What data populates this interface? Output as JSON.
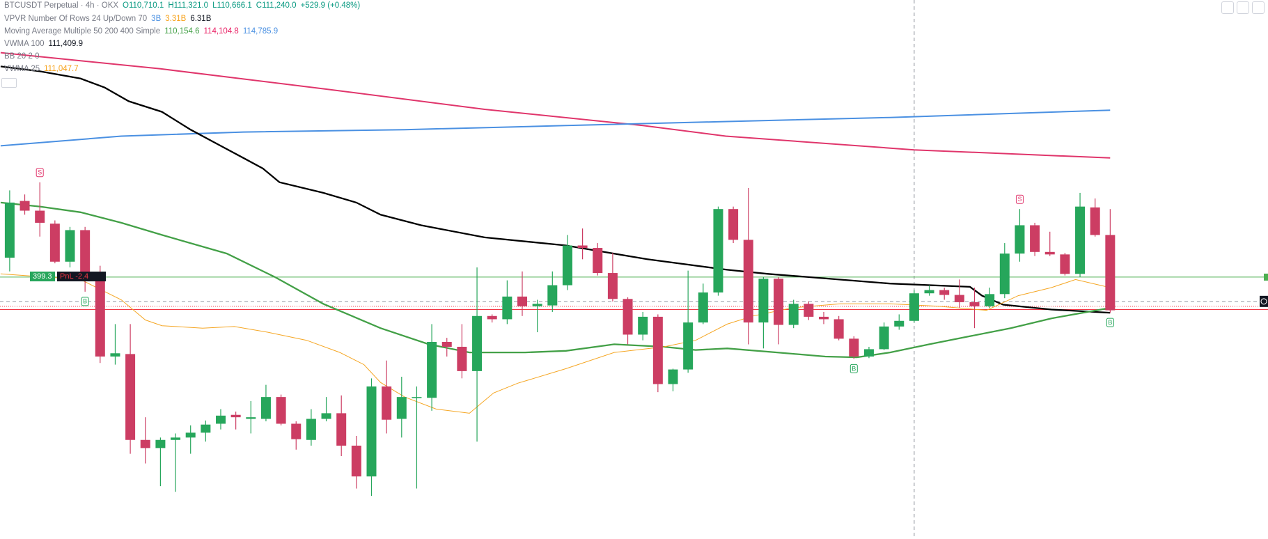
{
  "header": {
    "symbol": "BTCUSDT Perpetual · 4h · OKX",
    "open": "O110,710.1",
    "high": "H111,321.0",
    "low": "L110,666.1",
    "close": "C111,240.0",
    "change": "+529.9 (+0.48%)",
    "indicators": [
      {
        "name": "VPVR Number Of Rows 24 Up/Down 70",
        "values": [
          "3B",
          "3.31B",
          "6.31B"
        ]
      },
      {
        "name": "Moving Average Multiple 50 200 400 Simple",
        "values": [
          "110,154.6",
          "114,104.8",
          "114,785.9"
        ]
      },
      {
        "name": "VWMA 100",
        "values": [
          "111,409.9"
        ]
      },
      {
        "name": "BB 20 2 0",
        "values": []
      },
      {
        "name": "VWMA 25",
        "values": [
          "111,047.7"
        ]
      }
    ]
  },
  "chart_data": {
    "type": "candlestick",
    "ylim": [
      108700,
      116350
    ],
    "up_color": "#26a65b",
    "down_color": "#cc3d63",
    "open": [
      112693,
      113498,
      113360,
      113176,
      112636,
      113084,
      112463,
      111290,
      111325,
      110106,
      109991,
      110106,
      110140,
      110209,
      110336,
      110462,
      110405,
      110405,
      110715,
      110336,
      110106,
      110405,
      110485,
      110025,
      109588,
      110865,
      110405,
      110704,
      110704,
      111497,
      111428,
      111083,
      111865,
      111819,
      112141,
      112003,
      112015,
      112302,
      112866,
      112831,
      112475,
      112107,
      111601,
      111854,
      110899,
      111106,
      111773,
      112199,
      113383,
      112946,
      111773,
      112394,
      111739,
      112038,
      111854,
      111819,
      111543,
      111290,
      111394,
      111716,
      111796,
      112187,
      112233,
      112164,
      112061,
      112003,
      112176,
      112751,
      113153,
      112774,
      112739,
      112463,
      113406,
      113015
    ],
    "high": [
      113648,
      113590,
      113763,
      113222,
      113130,
      113130,
      112578,
      111750,
      111750,
      110428,
      110140,
      110198,
      110313,
      110382,
      110543,
      110508,
      110658,
      110888,
      110750,
      110370,
      110543,
      110715,
      110738,
      110163,
      110980,
      111233,
      111003,
      110865,
      111750,
      111555,
      111750,
      112555,
      111888,
      112371,
      112498,
      112095,
      112498,
      113015,
      113107,
      112900,
      112762,
      112130,
      111923,
      111888,
      111118,
      112509,
      112325,
      113418,
      113418,
      113682,
      112417,
      112417,
      112095,
      112072,
      111923,
      111865,
      111578,
      111428,
      111773,
      111888,
      112233,
      112302,
      112268,
      112383,
      112268,
      112268,
      112900,
      113383,
      113188,
      113061,
      112762,
      113613,
      113533,
      113383
    ],
    "low": [
      112498,
      113303,
      112992,
      112613,
      112555,
      112210,
      111198,
      111175,
      109910,
      109772,
      109450,
      109370,
      109910,
      110083,
      110255,
      110255,
      110198,
      110370,
      110313,
      109968,
      110025,
      110370,
      109876,
      109416,
      109312,
      110198,
      110140,
      109416,
      110520,
      111290,
      110980,
      110083,
      111773,
      111750,
      111865,
      111635,
      111923,
      112233,
      112670,
      112440,
      112072,
      111463,
      111520,
      110784,
      110796,
      111060,
      111750,
      112153,
      112900,
      111463,
      111405,
      111463,
      111693,
      111808,
      111750,
      111520,
      111256,
      111267,
      111382,
      111670,
      111773,
      112153,
      112095,
      111980,
      111693,
      111980,
      112118,
      112636,
      112716,
      112716,
      112440,
      112417,
      112992,
      111911
    ],
    "close": [
      113475,
      113360,
      113188,
      112636,
      113084,
      112440,
      111290,
      111336,
      110106,
      109991,
      110106,
      110140,
      110209,
      110324,
      110451,
      110428,
      110428,
      110715,
      110336,
      110117,
      110405,
      110485,
      110025,
      109588,
      110865,
      110393,
      110715,
      110715,
      111497,
      111428,
      111083,
      111865,
      111819,
      112141,
      112003,
      112038,
      112302,
      112866,
      112831,
      112475,
      112107,
      111601,
      111854,
      110899,
      111106,
      111773,
      112199,
      113383,
      112946,
      111773,
      112394,
      111739,
      112038,
      111854,
      111819,
      111543,
      111290,
      111394,
      111716,
      111796,
      112187,
      112233,
      112164,
      112061,
      112003,
      112176,
      112751,
      113153,
      112774,
      112739,
      112463,
      113418,
      113015,
      111946
    ],
    "lines": [
      {
        "color": "#e0356b",
        "width": 2,
        "x": [
          -0.6,
          10,
          21,
          31.5,
          42,
          47.5,
          60,
          73
        ],
        "values": [
          115603,
          115373,
          115085,
          114798,
          114568,
          114418,
          114223,
          114108
        ]
      },
      {
        "color": "#4a90e2",
        "width": 2,
        "x": [
          -0.6,
          7.4,
          15.5,
          26.2,
          36.9,
          47.6,
          58.4,
          73
        ],
        "values": [
          114280,
          114418,
          114476,
          114510,
          114568,
          114625,
          114683,
          114786
        ]
      },
      {
        "color": "#000000",
        "width": 2.3,
        "x": [
          -0.6,
          2.0,
          4.7,
          6.3,
          7.9,
          10.1,
          12.0,
          13.8,
          15.5,
          16.8,
          17.9,
          20.8,
          23.0,
          24.6,
          27.3,
          31.5,
          36.9,
          42.3,
          47.6,
          50.3,
          53.0,
          58.4,
          63.7,
          64.5,
          65.9,
          69.1,
          73
        ],
        "values": [
          115407,
          115338,
          115235,
          115108,
          114913,
          114763,
          114510,
          114303,
          114108,
          113958,
          113763,
          113613,
          113475,
          113303,
          113153,
          112981,
          112866,
          112670,
          112521,
          112463,
          112417,
          112325,
          112279,
          112153,
          112026,
          111957,
          111911
        ]
      },
      {
        "color": "#43a047",
        "width": 2.3,
        "x": [
          -0.6,
          2.0,
          4.7,
          7.4,
          10.1,
          14.4,
          17.6,
          20.8,
          24.6,
          27.8,
          30.5,
          34.2,
          36.9,
          40.1,
          43.4,
          45.5,
          47.6,
          50.9,
          54.1,
          56.2,
          58.4,
          61.0,
          63.7,
          66.4,
          69.1,
          73
        ],
        "values": [
          113475,
          113418,
          113337,
          113188,
          113015,
          112751,
          112417,
          112038,
          111693,
          111463,
          111348,
          111348,
          111371,
          111463,
          111428,
          111382,
          111405,
          111348,
          111290,
          111279,
          111348,
          111463,
          111578,
          111693,
          111831,
          111980
        ]
      },
      {
        "color": "#f5a623",
        "width": 1,
        "x": [
          -0.6,
          4.7,
          7.4,
          9.0,
          10.1,
          12.8,
          14.9,
          17.1,
          19.7,
          21.9,
          23.5,
          24.6,
          26.2,
          28.3,
          30.5,
          32.1,
          33.7,
          36.9,
          40.1,
          43.4,
          45.5,
          47.6,
          49.3,
          51.9,
          55.1,
          58.4,
          61.6,
          64.8,
          66.9,
          69.1,
          70.7,
          73
        ],
        "values": [
          112463,
          112383,
          112095,
          111808,
          111727,
          111693,
          111716,
          111635,
          111520,
          111348,
          111175,
          110922,
          110715,
          110543,
          110485,
          110773,
          110911,
          111118,
          111348,
          111428,
          111520,
          111750,
          111865,
          111980,
          112038,
          112038,
          112003,
          111946,
          112153,
          112268,
          112383,
          112268
        ]
      }
    ],
    "levels": [
      {
        "value": 112417,
        "color": "#4caf50",
        "dash": "none"
      },
      {
        "value": 112072,
        "color": "#9598a1",
        "dash": "5 4"
      },
      {
        "value": 112003,
        "color": "#f23645",
        "dash": "1 2"
      },
      {
        "value": 111957,
        "color": "#f23645",
        "dash": "none"
      }
    ],
    "signals": [
      {
        "label": "S",
        "x": 2,
        "side": "above"
      },
      {
        "label": "B",
        "x": 5,
        "side": "below"
      },
      {
        "label": "B",
        "x": 56,
        "side": "below"
      },
      {
        "label": "S",
        "x": 67,
        "side": "above"
      },
      {
        "label": "B",
        "x": 73,
        "side": "below"
      }
    ],
    "crosshair_x": 60,
    "position": {
      "qty": "399.3",
      "pnl": "PnL -2.4"
    }
  }
}
